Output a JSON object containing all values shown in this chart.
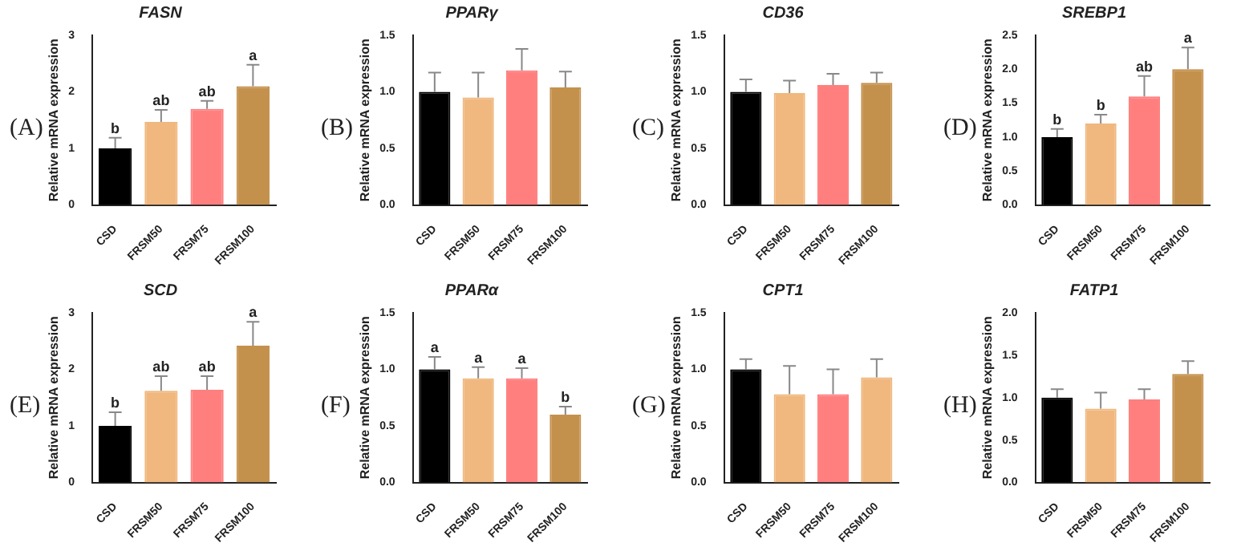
{
  "chart_data": [
    {
      "type": "bar",
      "title": "FASN",
      "ylabel": "Relative mRNA expression",
      "categories": [
        "CSD",
        "FRSM50",
        "FRSM75",
        "FRSM100"
      ],
      "values": [
        1.0,
        1.47,
        1.7,
        2.1
      ],
      "colors": [
        "#000000",
        "#f0b77e",
        "#ff7f7f",
        "#c4914d"
      ],
      "errors": [
        [
          1.0,
          1.19
        ],
        [
          1.47,
          1.68
        ],
        [
          1.7,
          1.84
        ],
        [
          2.1,
          2.48
        ]
      ],
      "value_labels": [
        "b",
        "ab",
        "ab",
        "a"
      ],
      "ylim": [
        0,
        3
      ],
      "yticks": [
        0,
        1,
        2,
        3
      ],
      "grid": false,
      "legend": false,
      "annotations": [
        "(A)"
      ]
    },
    {
      "type": "bar",
      "title": "PPARγ",
      "ylabel": "Relative mRNA expression",
      "categories": [
        "CSD",
        "FRSM50",
        "FRSM75",
        "FRSM100"
      ],
      "values": [
        1.0,
        0.95,
        1.19,
        1.04
      ],
      "colors": [
        "#000000",
        "#f0b77e",
        "#ff7f7f",
        "#c4914d"
      ],
      "errors": [
        [
          1.0,
          1.17
        ],
        [
          0.95,
          1.17
        ],
        [
          1.19,
          1.38
        ],
        [
          1.04,
          1.18
        ]
      ],
      "ylim": [
        0,
        1.5
      ],
      "yticks": [
        {
          "value": 0,
          "label": "0.0"
        },
        0.5,
        {
          "value": 1,
          "label": "1.0"
        },
        1.5
      ],
      "grid": false,
      "legend": false,
      "annotations": [
        "(B)"
      ]
    },
    {
      "type": "bar",
      "title": "CD36",
      "ylabel": "Relative mRNA expression",
      "categories": [
        "CSD",
        "FRSM50",
        "FRSM75",
        "FRSM100"
      ],
      "values": [
        1.0,
        0.99,
        1.06,
        1.08
      ],
      "colors": [
        "#000000",
        "#f0b77e",
        "#ff7f7f",
        "#c4914d"
      ],
      "errors": [
        [
          1.0,
          1.11
        ],
        [
          0.99,
          1.1
        ],
        [
          1.06,
          1.16
        ],
        [
          1.08,
          1.17
        ]
      ],
      "ylim": [
        0,
        1.5
      ],
      "yticks": [
        {
          "value": 0,
          "label": "0.0"
        },
        0.5,
        {
          "value": 1,
          "label": "1.0"
        },
        1.5
      ],
      "grid": false,
      "legend": false,
      "annotations": [
        "(C)"
      ]
    },
    {
      "type": "bar",
      "title": "SREBP1",
      "ylabel": "Relative mRNA expression",
      "categories": [
        "CSD",
        "FRSM50",
        "FRSM75",
        "FRSM100"
      ],
      "values": [
        1.0,
        1.2,
        1.6,
        2.0
      ],
      "colors": [
        "#000000",
        "#f0b77e",
        "#ff7f7f",
        "#c4914d"
      ],
      "errors": [
        [
          1.0,
          1.12
        ],
        [
          1.2,
          1.33
        ],
        [
          1.6,
          1.9
        ],
        [
          2.0,
          2.32
        ]
      ],
      "value_labels": [
        "b",
        "b",
        "ab",
        "a"
      ],
      "ylim": [
        0,
        2.5
      ],
      "yticks": [
        {
          "value": 0,
          "label": "0.0"
        },
        0.5,
        {
          "value": 1,
          "label": "1.0"
        },
        1.5,
        {
          "value": 2,
          "label": "2.0"
        },
        2.5
      ],
      "grid": false,
      "legend": false,
      "annotations": [
        "(D)"
      ]
    },
    {
      "type": "bar",
      "title": "SCD",
      "ylabel": "Relative mRNA expression",
      "categories": [
        "CSD",
        "FRSM50",
        "FRSM75",
        "FRSM100"
      ],
      "values": [
        1.0,
        1.62,
        1.64,
        2.42
      ],
      "colors": [
        "#000000",
        "#f0b77e",
        "#ff7f7f",
        "#c4914d"
      ],
      "errors": [
        [
          1.0,
          1.24
        ],
        [
          1.62,
          1.88
        ],
        [
          1.64,
          1.88
        ],
        [
          2.42,
          2.84
        ]
      ],
      "value_labels": [
        "b",
        "ab",
        "ab",
        "a"
      ],
      "ylim": [
        0,
        3
      ],
      "yticks": [
        0,
        1,
        2,
        3
      ],
      "grid": false,
      "legend": false,
      "annotations": [
        "(E)"
      ]
    },
    {
      "type": "bar",
      "title": "PPARα",
      "ylabel": "Relative mRNA expression",
      "categories": [
        "CSD",
        "FRSM50",
        "FRSM75",
        "FRSM100"
      ],
      "values": [
        1.0,
        0.92,
        0.92,
        0.6
      ],
      "colors": [
        "#000000",
        "#f0b77e",
        "#ff7f7f",
        "#c4914d"
      ],
      "errors": [
        [
          1.0,
          1.11
        ],
        [
          0.92,
          1.02
        ],
        [
          0.92,
          1.01
        ],
        [
          0.6,
          0.67
        ]
      ],
      "value_labels": [
        "a",
        "a",
        "a",
        "b"
      ],
      "ylim": [
        0,
        1.5
      ],
      "yticks": [
        {
          "value": 0,
          "label": "0.0"
        },
        0.5,
        {
          "value": 1,
          "label": "1.0"
        },
        1.5
      ],
      "grid": false,
      "legend": false,
      "annotations": [
        "(F)"
      ]
    },
    {
      "type": "bar",
      "title": "CPT1",
      "ylabel": "Relative mRNA expression",
      "categories": [
        "CSD",
        "FRSM50",
        "FRSM75",
        "FRSM100"
      ],
      "values": [
        1.0,
        0.78,
        0.78,
        0.93
      ],
      "colors": [
        "#000000",
        "#f0b77e",
        "#ff7f7f",
        "#f0b77e"
      ],
      "errors": [
        [
          1.0,
          1.09
        ],
        [
          0.78,
          1.03
        ],
        [
          0.78,
          1.0
        ],
        [
          0.93,
          1.09
        ]
      ],
      "ylim": [
        0,
        1.5
      ],
      "yticks": [
        {
          "value": 0,
          "label": "0.0"
        },
        0.5,
        {
          "value": 1,
          "label": "1.0"
        },
        1.5
      ],
      "grid": false,
      "legend": false,
      "annotations": [
        "(G)"
      ]
    },
    {
      "type": "bar",
      "title": "FATP1",
      "ylabel": "Relative mRNA expression",
      "categories": [
        "CSD",
        "FRSM50",
        "FRSM75",
        "FRSM100"
      ],
      "values": [
        1.0,
        0.87,
        0.98,
        1.28
      ],
      "colors": [
        "#000000",
        "#f0b77e",
        "#ff7f7f",
        "#c4914d"
      ],
      "errors": [
        [
          1.0,
          1.1
        ],
        [
          0.87,
          1.06
        ],
        [
          0.98,
          1.1
        ],
        [
          1.28,
          1.43
        ]
      ],
      "ylim": [
        0,
        2
      ],
      "yticks": [
        {
          "value": 0,
          "label": "0.0"
        },
        0.5,
        {
          "value": 1,
          "label": "1.0"
        },
        1.5,
        {
          "value": 2,
          "label": "2.0"
        }
      ],
      "grid": false,
      "legend": false,
      "annotations": [
        "(H)"
      ]
    }
  ]
}
